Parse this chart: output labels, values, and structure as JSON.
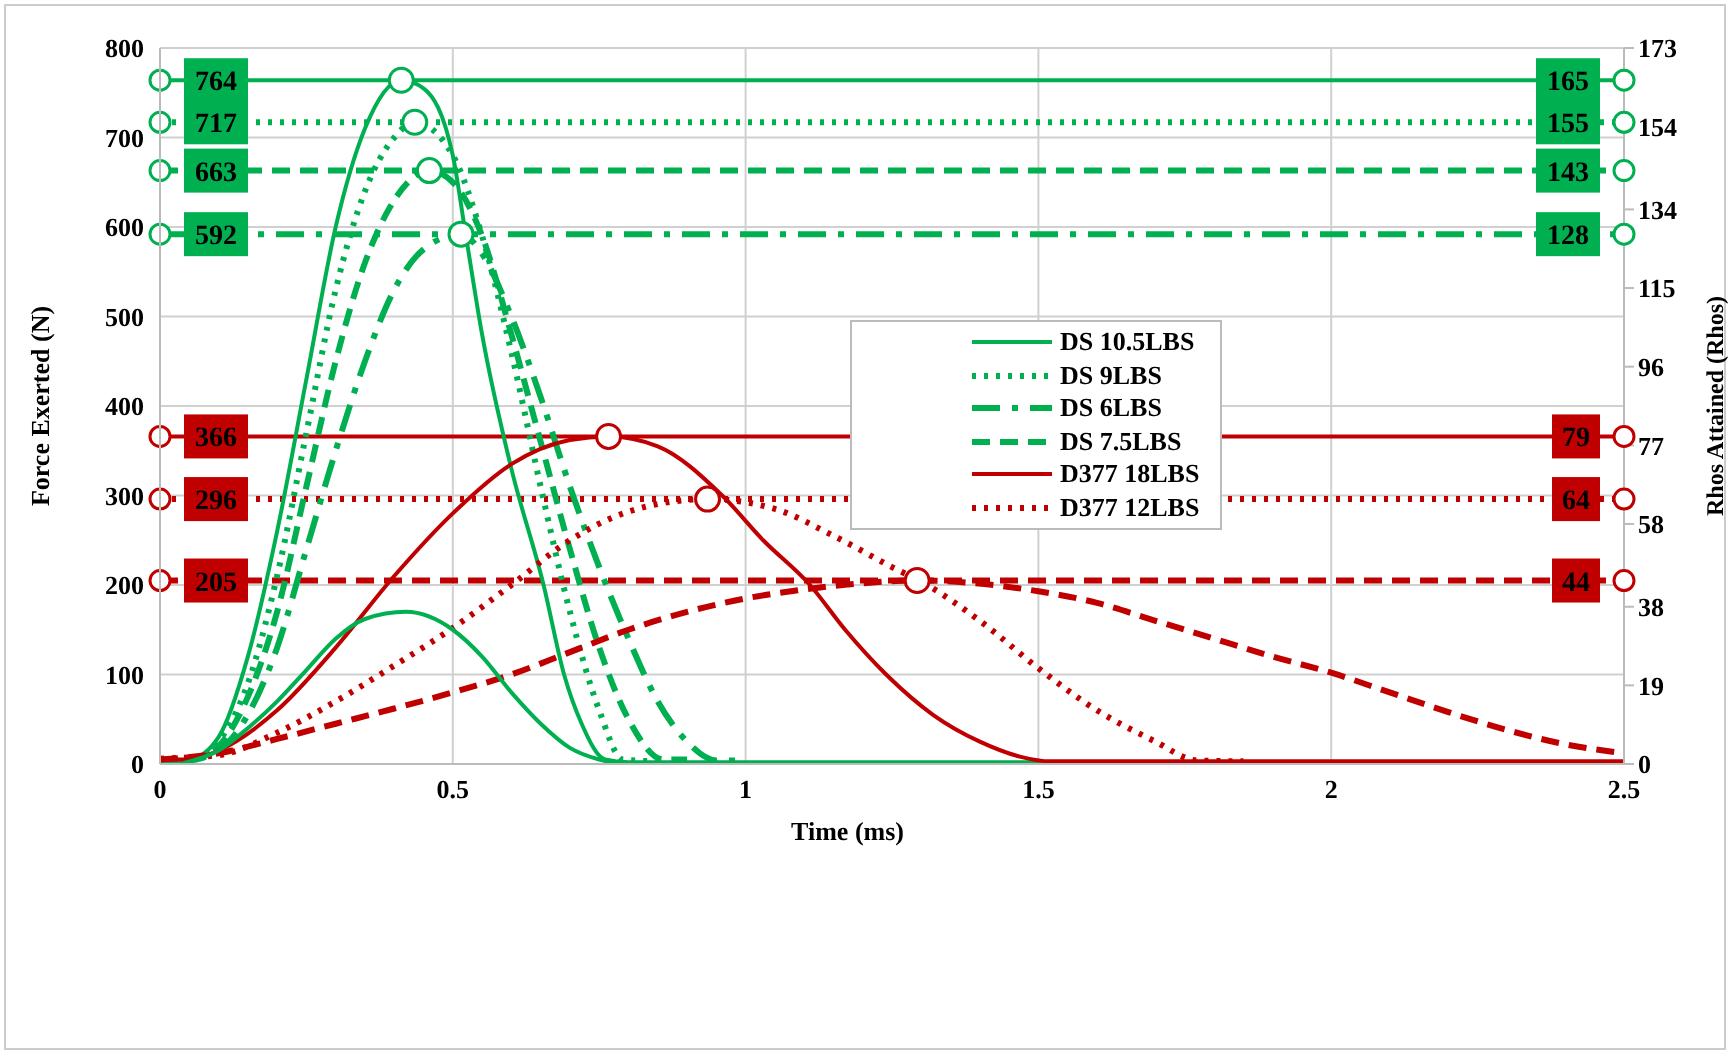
{
  "chart_data": {
    "type": "line",
    "xlabel": "Time (ms)",
    "ylabel": "Force Exerted (N)",
    "y2label": "Rhos Attained (Rhos)",
    "xlim": [
      0,
      2.5
    ],
    "xticks": [
      0,
      0.5,
      1,
      1.5,
      2,
      2.5
    ],
    "ylim": [
      0,
      800
    ],
    "yticks": [
      0,
      100,
      200,
      300,
      400,
      500,
      600,
      700,
      800
    ],
    "y2lim": [
      0,
      173
    ],
    "y2ticks": [
      0,
      19,
      38,
      58,
      77,
      96,
      115,
      134,
      154,
      173
    ],
    "grid": true,
    "legend": "right",
    "marker": "none",
    "series": [
      {
        "name": "DS 10.5LBS",
        "color": "#00b050",
        "line_style": "solid",
        "x": [
          0,
          0.05,
          0.1,
          0.15,
          0.2,
          0.25,
          0.3,
          0.35,
          0.412,
          0.45,
          0.5,
          0.52,
          0.55,
          0.6,
          0.655,
          0.69,
          0.72,
          0.76,
          0.8,
          2.5
        ],
        "values": [
          3,
          5,
          30,
          120,
          260,
          430,
          600,
          710,
          764,
          755,
          680,
          600,
          480,
          330,
          200,
          100,
          45,
          5,
          2,
          2
        ]
      },
      {
        "name": "DS 9LBS",
        "color": "#00b050",
        "line_style": "dotted",
        "x": [
          0,
          0.05,
          0.1,
          0.15,
          0.2,
          0.25,
          0.3,
          0.35,
          0.4,
          0.435,
          0.5,
          0.55,
          0.6,
          0.65,
          0.7,
          0.75,
          0.79,
          0.85
        ],
        "values": [
          4,
          4,
          25,
          90,
          210,
          370,
          530,
          640,
          700,
          717,
          680,
          590,
          460,
          310,
          170,
          60,
          5,
          3
        ]
      },
      {
        "name": "DS 6LBS",
        "color": "#00b050",
        "line_style": "dashdot",
        "x": [
          0,
          0.05,
          0.1,
          0.15,
          0.2,
          0.25,
          0.3,
          0.35,
          0.4,
          0.45,
          0.514,
          0.55,
          0.6,
          0.65,
          0.7,
          0.75,
          0.8,
          0.85,
          0.9,
          0.95,
          1.0
        ],
        "values": [
          2,
          4,
          15,
          55,
          130,
          240,
          350,
          450,
          530,
          575,
          592,
          570,
          500,
          410,
          310,
          220,
          140,
          70,
          25,
          4,
          4
        ]
      },
      {
        "name": "DS 7.5LBS",
        "color": "#00b050",
        "line_style": "dashed",
        "x": [
          0,
          0.05,
          0.1,
          0.15,
          0.2,
          0.25,
          0.3,
          0.35,
          0.4,
          0.46,
          0.5,
          0.55,
          0.6,
          0.65,
          0.7,
          0.75,
          0.8,
          0.86,
          0.9
        ],
        "values": [
          5,
          4,
          20,
          75,
          170,
          310,
          450,
          560,
          630,
          663,
          650,
          590,
          480,
          360,
          240,
          130,
          50,
          5,
          5
        ]
      },
      {
        "name": "D377 18LBS",
        "color": "#c00000",
        "line_style": "solid",
        "x": [
          0,
          0.05,
          0.1,
          0.2,
          0.3,
          0.4,
          0.5,
          0.6,
          0.7,
          0.766,
          0.85,
          0.96,
          1.03,
          1.11,
          1.17,
          1.24,
          1.32,
          1.4,
          1.47,
          1.52,
          2.5
        ],
        "values": [
          5,
          5,
          15,
          60,
          130,
          210,
          280,
          335,
          362,
          366,
          355,
          300,
          250,
          200,
          150,
          100,
          55,
          25,
          8,
          3,
          3
        ]
      },
      {
        "name": "D377 12LBS",
        "color": "#c00000",
        "line_style": "dotted",
        "x": [
          0,
          0.1,
          0.2,
          0.3,
          0.4,
          0.5,
          0.6,
          0.7,
          0.8,
          0.935,
          1.05,
          1.15,
          1.25,
          1.31,
          1.4,
          1.5,
          1.6,
          1.7,
          1.77,
          1.85
        ],
        "values": [
          6,
          10,
          35,
          70,
          110,
          152,
          200,
          250,
          282,
          296,
          285,
          255,
          220,
          200,
          160,
          107,
          60,
          25,
          4,
          3
        ]
      },
      {
        "color": "#c00000",
        "line_style": "dashed",
        "x": [
          0,
          0.1,
          0.2,
          0.3,
          0.4,
          0.5,
          0.6,
          0.7,
          0.8,
          0.9,
          1.0,
          1.1,
          1.2,
          1.293,
          1.5,
          1.6,
          1.7,
          1.8,
          1.9,
          2.0,
          2.1,
          2.2,
          2.3,
          2.4,
          2.5
        ],
        "values": [
          5,
          12,
          28,
          45,
          62,
          80,
          100,
          125,
          150,
          170,
          185,
          195,
          202,
          205,
          193,
          180,
          160,
          140,
          120,
          102,
          80,
          58,
          38,
          22,
          12
        ]
      },
      {
        "color": "#00b050",
        "line_style": "solid",
        "x": [
          0.04,
          0.1,
          0.15,
          0.2,
          0.25,
          0.3,
          0.35,
          0.42,
          0.5,
          0.55,
          0.6,
          0.65,
          0.7,
          0.75,
          0.78
        ],
        "values": [
          1,
          15,
          40,
          70,
          105,
          140,
          162,
          170,
          150,
          120,
          80,
          45,
          18,
          5,
          1
        ]
      },
      {
        "type": "scatter",
        "marker": "circle",
        "x": [
          0.412,
          0.435,
          0.46,
          0.514,
          0.766,
          0.935,
          1.293
        ],
        "values": [
          764,
          717,
          663,
          592,
          366,
          296,
          205
        ],
        "colors": [
          "#00b050",
          "#00b050",
          "#00b050",
          "#00b050",
          "#c00000",
          "#c00000",
          "#c00000"
        ]
      }
    ],
    "ref_lines": [
      {
        "axis": "y",
        "value": 764,
        "label": "764",
        "color": "#00b050",
        "line_style": "solid"
      },
      {
        "axis": "y",
        "value": 717,
        "label": "717",
        "color": "#00b050",
        "line_style": "dotted"
      },
      {
        "axis": "y",
        "value": 663,
        "label": "663",
        "color": "#00b050",
        "line_style": "dashed"
      },
      {
        "axis": "y",
        "value": 592,
        "label": "592",
        "color": "#00b050",
        "line_style": "dashdot"
      },
      {
        "axis": "y",
        "value": 366,
        "label": "366",
        "color": "#c00000",
        "line_style": "solid"
      },
      {
        "axis": "y",
        "value": 296,
        "label": "296",
        "color": "#c00000",
        "line_style": "dotted"
      },
      {
        "axis": "y",
        "value": 205,
        "label": "205",
        "color": "#c00000",
        "line_style": "dashed"
      }
    ],
    "annotations": [
      {
        "text": "165",
        "y": 764
      },
      {
        "text": "155",
        "y": 717
      },
      {
        "text": "143",
        "y": 663
      },
      {
        "text": "128",
        "y": 592
      },
      {
        "text": "79",
        "y": 366
      },
      {
        "text": "64",
        "y": 296
      },
      {
        "text": "44",
        "y": 205
      }
    ]
  }
}
